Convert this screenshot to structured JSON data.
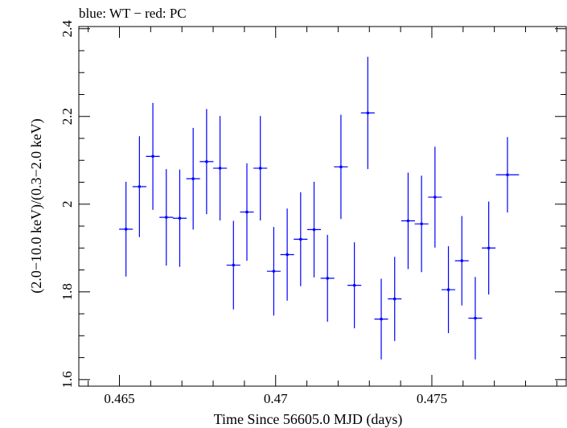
{
  "chart_data": {
    "type": "scatter",
    "title": "blue: WT − red: PC",
    "xlabel": "Time Since 56605.0 MJD (days)",
    "ylabel": "(2.0−10.0 keV)/(0.3−2.0 keV)",
    "xlim": [
      0.4637,
      0.4793
    ],
    "ylim": [
      1.585,
      2.405
    ],
    "xticks": [
      0.465,
      0.47,
      0.475
    ],
    "xtick_labels": [
      "0.465",
      "0.47",
      "0.475"
    ],
    "yticks": [
      1.6,
      1.8,
      2.0,
      2.2,
      2.4
    ],
    "ytick_labels": [
      "1.6",
      "1.8",
      "2",
      "2.2",
      "2.4"
    ],
    "grid": false,
    "series": [
      {
        "color": "#0000ff",
        "points": [
          {
            "x": 0.46521,
            "xerr": 0.00022,
            "y": 1.943,
            "yerr": 0.108
          },
          {
            "x": 0.46564,
            "xerr": 0.00022,
            "y": 2.04,
            "yerr": 0.115
          },
          {
            "x": 0.46607,
            "xerr": 0.00022,
            "y": 2.109,
            "yerr": 0.122
          },
          {
            "x": 0.4665,
            "xerr": 0.00022,
            "y": 1.97,
            "yerr": 0.11
          },
          {
            "x": 0.46693,
            "xerr": 0.00022,
            "y": 1.968,
            "yerr": 0.111
          },
          {
            "x": 0.46736,
            "xerr": 0.00022,
            "y": 2.058,
            "yerr": 0.116
          },
          {
            "x": 0.46779,
            "xerr": 0.00022,
            "y": 2.097,
            "yerr": 0.12
          },
          {
            "x": 0.46822,
            "xerr": 0.00022,
            "y": 2.082,
            "yerr": 0.119
          },
          {
            "x": 0.46865,
            "xerr": 0.00022,
            "y": 1.861,
            "yerr": 0.101
          },
          {
            "x": 0.46908,
            "xerr": 0.00022,
            "y": 1.982,
            "yerr": 0.111
          },
          {
            "x": 0.46951,
            "xerr": 0.00022,
            "y": 2.082,
            "yerr": 0.119
          },
          {
            "x": 0.46994,
            "xerr": 0.00022,
            "y": 1.847,
            "yerr": 0.101
          },
          {
            "x": 0.47037,
            "xerr": 0.00022,
            "y": 1.885,
            "yerr": 0.105
          },
          {
            "x": 0.4708,
            "xerr": 0.00022,
            "y": 1.92,
            "yerr": 0.107
          },
          {
            "x": 0.47123,
            "xerr": 0.00022,
            "y": 1.942,
            "yerr": 0.109
          },
          {
            "x": 0.47166,
            "xerr": 0.00022,
            "y": 1.831,
            "yerr": 0.099
          },
          {
            "x": 0.47209,
            "xerr": 0.00022,
            "y": 2.085,
            "yerr": 0.119
          },
          {
            "x": 0.47252,
            "xerr": 0.00022,
            "y": 1.815,
            "yerr": 0.098
          },
          {
            "x": 0.47295,
            "xerr": 0.00022,
            "y": 2.208,
            "yerr": 0.128
          },
          {
            "x": 0.47338,
            "xerr": 0.00022,
            "y": 1.738,
            "yerr": 0.092
          },
          {
            "x": 0.47381,
            "xerr": 0.00022,
            "y": 1.784,
            "yerr": 0.096
          },
          {
            "x": 0.47424,
            "xerr": 0.00022,
            "y": 1.962,
            "yerr": 0.11
          },
          {
            "x": 0.47467,
            "xerr": 0.00022,
            "y": 1.955,
            "yerr": 0.11
          },
          {
            "x": 0.4751,
            "xerr": 0.00022,
            "y": 2.016,
            "yerr": 0.115
          },
          {
            "x": 0.47553,
            "xerr": 0.00022,
            "y": 1.805,
            "yerr": 0.099
          },
          {
            "x": 0.47596,
            "xerr": 0.00022,
            "y": 1.871,
            "yerr": 0.102
          },
          {
            "x": 0.47639,
            "xerr": 0.00022,
            "y": 1.74,
            "yerr": 0.094
          },
          {
            "x": 0.47682,
            "xerr": 0.00022,
            "y": 1.9,
            "yerr": 0.106
          },
          {
            "x": 0.47742,
            "xerr": 0.00037,
            "y": 2.067,
            "yerr": 0.086
          }
        ]
      }
    ]
  }
}
